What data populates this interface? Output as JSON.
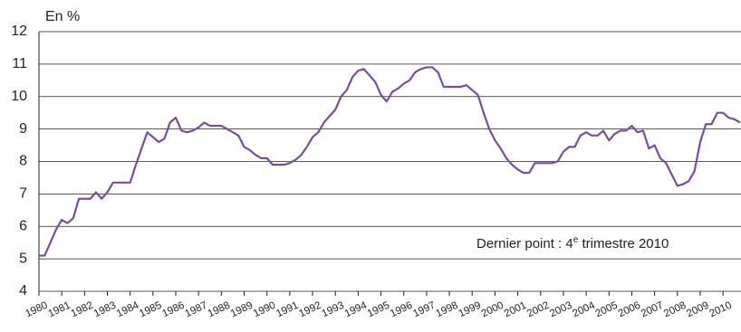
{
  "chart_data": {
    "type": "line",
    "y_label": "En %",
    "annotation": [
      "Dernier point : 4",
      "e",
      " trimestre 2010"
    ],
    "categories": [
      "1980",
      null,
      null,
      null,
      "1981",
      null,
      null,
      null,
      "1982",
      null,
      null,
      null,
      "1983",
      null,
      null,
      null,
      "1984",
      null,
      null,
      null,
      "1985",
      null,
      null,
      null,
      "1986",
      null,
      null,
      null,
      "1987",
      null,
      null,
      null,
      "1988",
      null,
      null,
      null,
      "1989",
      null,
      null,
      null,
      "1990",
      null,
      null,
      null,
      "1991",
      null,
      null,
      null,
      "1992",
      null,
      null,
      null,
      "1993",
      null,
      null,
      null,
      "1994",
      null,
      null,
      null,
      "1995",
      null,
      null,
      null,
      "1996",
      null,
      null,
      null,
      "1997",
      null,
      null,
      null,
      "1998",
      null,
      null,
      null,
      "1999",
      null,
      null,
      null,
      "2000",
      null,
      null,
      null,
      "2001",
      null,
      null,
      null,
      "2002",
      null,
      null,
      null,
      "2003",
      null,
      null,
      null,
      "2004",
      null,
      null,
      null,
      "2005",
      null,
      null,
      null,
      "2006",
      null,
      null,
      null,
      "2007",
      null,
      null,
      null,
      "2008",
      null,
      null,
      null,
      "2009",
      null,
      null,
      null,
      "2010",
      null,
      null,
      null
    ],
    "values": [
      5.1,
      5.1,
      5.5,
      5.9,
      6.2,
      6.1,
      6.25,
      6.85,
      6.85,
      6.85,
      7.05,
      6.85,
      7.05,
      7.35,
      7.35,
      7.35,
      7.35,
      7.9,
      8.4,
      8.9,
      8.75,
      8.6,
      8.7,
      9.2,
      9.35,
      8.95,
      8.9,
      8.95,
      9.05,
      9.2,
      9.1,
      9.1,
      9.1,
      9.0,
      8.9,
      8.8,
      8.45,
      8.35,
      8.2,
      8.1,
      8.1,
      7.9,
      7.9,
      7.9,
      7.95,
      8.05,
      8.2,
      8.45,
      8.75,
      8.9,
      9.2,
      9.4,
      9.6,
      10.0,
      10.2,
      10.6,
      10.8,
      10.85,
      10.65,
      10.45,
      10.05,
      9.85,
      10.15,
      10.25,
      10.4,
      10.5,
      10.75,
      10.85,
      10.9,
      10.9,
      10.75,
      10.3,
      10.3,
      10.3,
      10.3,
      10.35,
      10.2,
      10.05,
      9.5,
      9.0,
      8.65,
      8.4,
      8.1,
      7.9,
      7.75,
      7.65,
      7.65,
      7.95,
      7.95,
      7.95,
      7.95,
      8.0,
      8.3,
      8.45,
      8.45,
      8.8,
      8.9,
      8.8,
      8.8,
      8.95,
      8.65,
      8.85,
      8.95,
      8.95,
      9.1,
      8.9,
      8.95,
      8.4,
      8.5,
      8.1,
      7.95,
      7.6,
      7.25,
      7.3,
      7.4,
      7.7,
      8.6,
      9.15,
      9.15,
      9.5,
      9.5,
      9.35,
      9.3,
      9.2
    ],
    "color": "#7a4c9f",
    "ylim": [
      4,
      12
    ],
    "yticks": [
      4,
      5,
      6,
      7,
      8,
      9,
      10,
      11,
      12
    ],
    "grid": true
  }
}
